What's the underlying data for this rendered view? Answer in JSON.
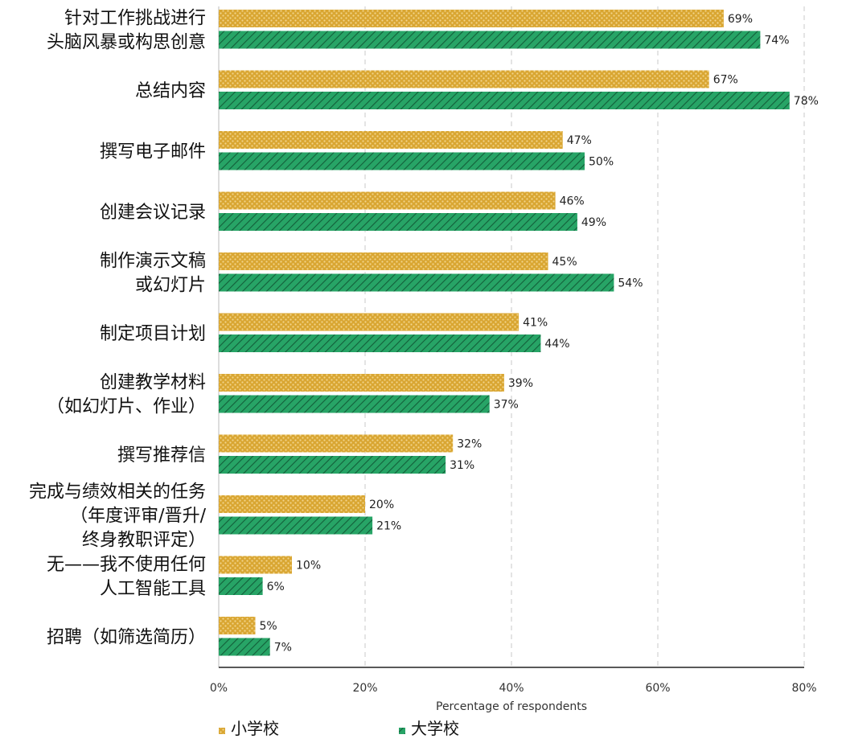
{
  "chart_data": {
    "type": "bar",
    "orientation": "horizontal",
    "categories": [
      [
        "针对工作挑战进行",
        "头脑风暴或构思创意"
      ],
      [
        "总结内容"
      ],
      [
        "撰写电子邮件"
      ],
      [
        "创建会议记录"
      ],
      [
        "制作演示文稿",
        "或幻灯片"
      ],
      [
        "制定项目计划"
      ],
      [
        "创建教学材料",
        "（如幻灯片、作业）"
      ],
      [
        "撰写推荐信"
      ],
      [
        "完成与绩效相关的任务",
        "（年度评审/晋升/",
        "终身教职评定）"
      ],
      [
        "无——我不使用任何",
        "人工智能工具"
      ],
      [
        "招聘（如筛选简历）"
      ]
    ],
    "series": [
      {
        "name": "小学校",
        "color": "#d9a632",
        "pattern": "dots",
        "values": [
          69,
          67,
          47,
          46,
          45,
          41,
          39,
          32,
          20,
          10,
          5
        ]
      },
      {
        "name": "大学校",
        "color": "#27a466",
        "pattern": "hatch",
        "values": [
          74,
          78,
          50,
          49,
          54,
          44,
          37,
          31,
          21,
          6,
          7
        ]
      }
    ],
    "value_suffix": "%",
    "xlabel": "Percentage of respondents",
    "xlim": [
      0,
      80
    ],
    "xticks": [
      0,
      20,
      40,
      60,
      80
    ],
    "tick_suffix": "%",
    "grid": "vertical-dashed",
    "legend_position": "bottom-left"
  }
}
